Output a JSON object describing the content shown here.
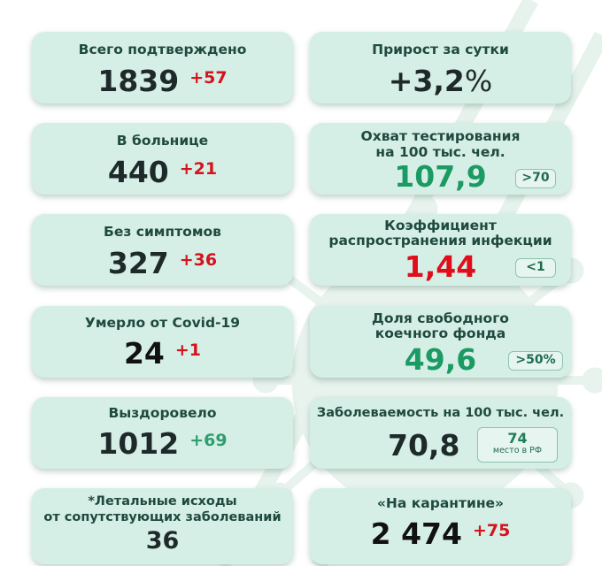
{
  "cards": {
    "confirmed": {
      "title": "Всего подтверждено",
      "value": "1839",
      "delta": "+57"
    },
    "daily_growth": {
      "title": "Прирост за сутки",
      "value": "+3,2",
      "unit": "%"
    },
    "hospital": {
      "title": "В больнице",
      "value": "440",
      "delta": "+21"
    },
    "testing": {
      "title_line1": "Охват тестирования",
      "title_line2": "на 100 тыс. чел.",
      "value": "107,9",
      "norm": ">70"
    },
    "asymptomatic": {
      "title": "Без симптомов",
      "value": "327",
      "delta": "+36"
    },
    "spread": {
      "title_line1": "Коэффициент",
      "title_line2": "распространения инфекции",
      "value": "1,44",
      "norm": "<1"
    },
    "died": {
      "title": "Умерло от Covid-19",
      "value": "24",
      "delta": "+1"
    },
    "beds": {
      "title_line1": "Доля свободного",
      "title_line2": "коечного фонда",
      "value": "49,6",
      "norm": ">50%"
    },
    "recovered": {
      "title": "Выздоровело",
      "value": "1012",
      "delta": "+69"
    },
    "incidence": {
      "title": "Заболеваемость на 100 тыс. чел.",
      "value": "70,8",
      "rank": "74",
      "rank_label": "место в РФ"
    },
    "comorbid": {
      "title_line1": "*Летальные исходы",
      "title_line2": "от сопутствующих заболеваний",
      "value": "36"
    },
    "quarantine": {
      "title": "«На карантине»",
      "value": "2 474",
      "delta": "+75"
    }
  },
  "colors": {
    "card_bg": "#d6efe6",
    "title_text": "#1f4a3f",
    "value_dark": "#1e2a2a",
    "value_green": "#1c9a63",
    "value_red": "#e00e1a",
    "delta_red": "#d4131d",
    "delta_green": "#2e9e6f"
  }
}
